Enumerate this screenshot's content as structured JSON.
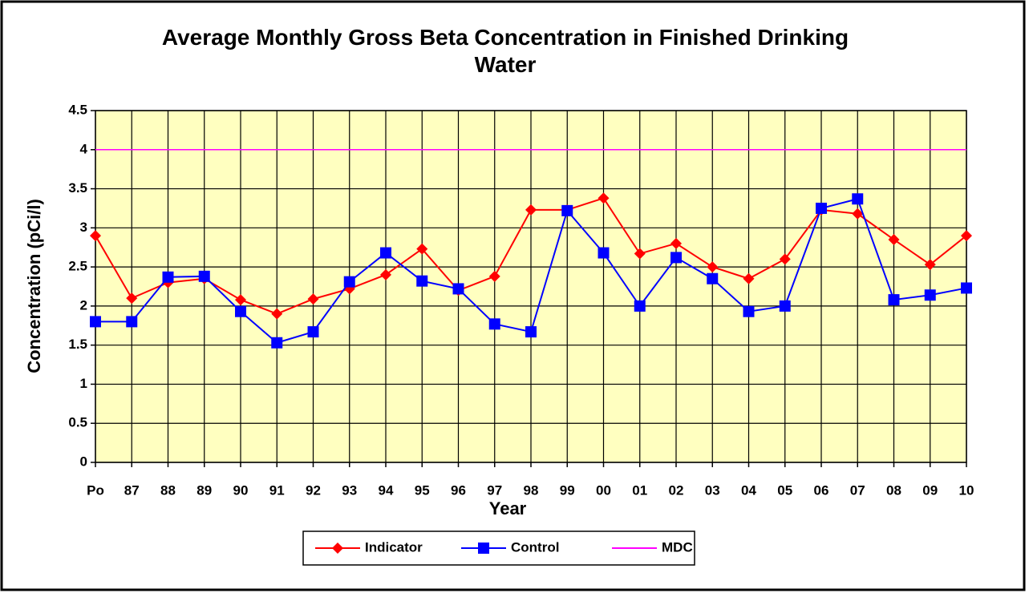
{
  "chart_data": {
    "type": "line",
    "title": "Average Monthly Gross Beta Concentration in Finished Drinking Water",
    "x_label": "Year",
    "y_label": "Concentration (pCi/l)",
    "categories": [
      "Po",
      "87",
      "88",
      "89",
      "90",
      "91",
      "92",
      "93",
      "94",
      "95",
      "96",
      "97",
      "98",
      "99",
      "00",
      "01",
      "02",
      "03",
      "04",
      "05",
      "06",
      "07",
      "08",
      "09",
      "10"
    ],
    "series": [
      {
        "name": "Indicator",
        "color": "#ff0000",
        "marker": "diamond",
        "values": [
          2.9,
          2.1,
          2.3,
          2.35,
          2.08,
          1.9,
          2.09,
          2.22,
          2.4,
          2.73,
          2.2,
          2.38,
          3.23,
          3.23,
          3.38,
          2.67,
          2.8,
          2.5,
          2.35,
          2.6,
          3.23,
          3.18,
          2.85,
          2.53,
          2.9
        ]
      },
      {
        "name": "Control",
        "color": "#0000ff",
        "marker": "square",
        "values": [
          1.8,
          1.8,
          2.37,
          2.38,
          1.93,
          1.53,
          1.67,
          2.31,
          2.68,
          2.32,
          2.22,
          1.77,
          1.67,
          3.22,
          2.68,
          2.0,
          2.62,
          2.35,
          1.93,
          2.0,
          3.25,
          3.37,
          2.08,
          2.14,
          2.23
        ]
      },
      {
        "name": "MDC",
        "color": "#ff00ff",
        "marker": "none",
        "values": [
          4,
          4,
          4,
          4,
          4,
          4,
          4,
          4,
          4,
          4,
          4,
          4,
          4,
          4,
          4,
          4,
          4,
          4,
          4,
          4,
          4,
          4,
          4,
          4,
          4
        ]
      }
    ],
    "ylim": [
      0,
      4.5
    ],
    "yticks": [
      0,
      0.5,
      1,
      1.5,
      2,
      2.5,
      3,
      3.5,
      4,
      4.5
    ],
    "grid": true,
    "plot_background": "#ffffc0",
    "legend": "bottom"
  }
}
